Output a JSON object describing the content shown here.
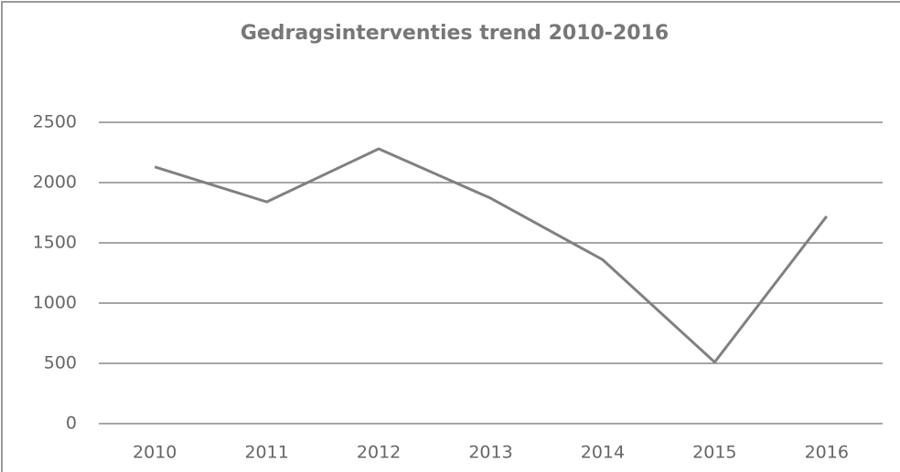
{
  "chart_data": {
    "type": "line",
    "title": "Gedragsinterventies trend 2010-2016",
    "categories": [
      "2010",
      "2011",
      "2012",
      "2013",
      "2014",
      "2015",
      "2016"
    ],
    "series": [
      {
        "name": "Gedragsinterventies",
        "color": "#808080",
        "values": [
          2130,
          1840,
          2280,
          1870,
          1360,
          510,
          1720
        ]
      }
    ],
    "ylim": [
      0,
      2500
    ],
    "yticks": [
      0,
      500,
      1000,
      1500,
      2000,
      2500
    ],
    "grid": true
  }
}
